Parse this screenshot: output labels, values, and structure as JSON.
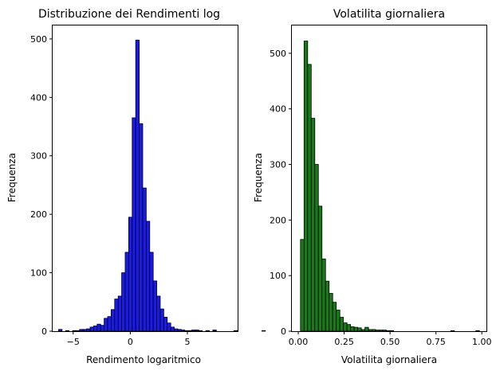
{
  "chart_data": [
    {
      "type": "bar",
      "title": "Distribuzione dei Rendimenti log",
      "xlabel": "Rendimento logaritmico",
      "ylabel": "Frequenza",
      "xlim": [
        -6.8,
        9.4
      ],
      "ylim": [
        0,
        523
      ],
      "xticks": [
        -5,
        0,
        5
      ],
      "yticks": [
        0,
        100,
        200,
        300,
        400,
        500
      ],
      "bar_color": "#1a1aeb",
      "bin_edges_start": -6.28,
      "bin_width": 0.307,
      "counts": [
        3,
        0,
        1,
        0,
        1,
        1,
        3,
        3,
        4,
        7,
        9,
        12,
        10,
        22,
        25,
        37,
        55,
        60,
        100,
        135,
        195,
        365,
        498,
        355,
        245,
        188,
        135,
        86,
        60,
        38,
        24,
        14,
        7,
        4,
        3,
        2,
        1,
        1,
        2,
        2,
        1,
        0,
        1,
        0,
        2,
        0,
        0,
        0,
        0,
        0,
        1,
        0,
        0,
        0,
        0,
        0,
        0,
        0,
        1
      ]
    },
    {
      "type": "bar",
      "title": "Volatilita giornaliera",
      "xlabel": "Volatilita giornaliera",
      "ylabel": "Frequenza",
      "xlim": [
        -0.035,
        1.025
      ],
      "ylim": [
        0,
        550
      ],
      "xticks": [
        "0.00",
        "0.25",
        "0.50",
        "0.75",
        "1.00"
      ],
      "yticks": [
        0,
        100,
        200,
        300,
        400,
        500
      ],
      "bar_color": "#1a7a1a",
      "bin_edges_start": 0.012,
      "bin_width": 0.0195,
      "counts": [
        165,
        522,
        480,
        383,
        300,
        225,
        130,
        90,
        68,
        52,
        38,
        25,
        15,
        12,
        8,
        7,
        6,
        3,
        7,
        3,
        3,
        2,
        2,
        2,
        1,
        1,
        0,
        0,
        0,
        0,
        0,
        0,
        0,
        0,
        0,
        0,
        0,
        0,
        0,
        0,
        0,
        0,
        1,
        0,
        0,
        0,
        0,
        0,
        0,
        1
      ]
    }
  ]
}
